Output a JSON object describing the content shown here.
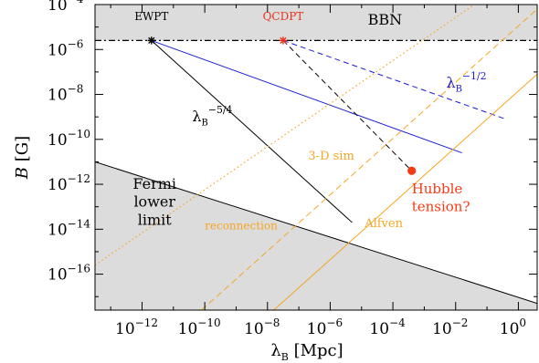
{
  "chart_data": {
    "type": "line",
    "x_scale": "log10",
    "y_scale": "log10",
    "xlim": [
      -13.5,
      0.6
    ],
    "ylim": [
      -17.6,
      -4.0
    ],
    "xlabel_main": "λ",
    "xlabel_sub": "B",
    "xlabel_rest": " [Mpc]",
    "ylabel_main": "B",
    "ylabel_rest": " [G]",
    "x_ticks": [
      {
        "exp": -12,
        "label": "10",
        "sup": "−12"
      },
      {
        "exp": -10,
        "label": "10",
        "sup": "−10"
      },
      {
        "exp": -8,
        "label": "10",
        "sup": "−8"
      },
      {
        "exp": -6,
        "label": "10",
        "sup": "−6"
      },
      {
        "exp": -4,
        "label": "10",
        "sup": "−4"
      },
      {
        "exp": -2,
        "label": "10",
        "sup": "−2"
      },
      {
        "exp": 0,
        "label": "10",
        "sup": "0"
      }
    ],
    "y_ticks": [
      {
        "exp": -4,
        "label": "10",
        "sup": "−4"
      },
      {
        "exp": -6,
        "label": "10",
        "sup": "−6"
      },
      {
        "exp": -8,
        "label": "10",
        "sup": "−8"
      },
      {
        "exp": -10,
        "label": "10",
        "sup": "−10"
      },
      {
        "exp": -12,
        "label": "10",
        "sup": "−12"
      },
      {
        "exp": -14,
        "label": "10",
        "sup": "−14"
      },
      {
        "exp": -16,
        "label": "10",
        "sup": "−16"
      }
    ],
    "regions": [
      {
        "name": "bbn-region",
        "color": "#dcdcdc",
        "points": [
          [
            -13.5,
            -5.6
          ],
          [
            0.6,
            -5.6
          ],
          [
            0.6,
            -4.0
          ],
          [
            -13.5,
            -4.0
          ]
        ]
      },
      {
        "name": "fermi-region",
        "color": "#dcdcdc",
        "points": [
          [
            -13.5,
            -11.0
          ],
          [
            0.6,
            -17.3
          ],
          [
            0.6,
            -17.6
          ],
          [
            -13.5,
            -17.6
          ]
        ]
      }
    ],
    "lines": [
      {
        "name": "bbn-bound",
        "color": "#000000",
        "dash": "7,3,2,3",
        "width": 1.2,
        "points": [
          [
            -13.5,
            -5.6
          ],
          [
            0.6,
            -5.6
          ]
        ]
      },
      {
        "name": "fermi-bound",
        "color": "#000000",
        "dash": "",
        "width": 1,
        "points": [
          [
            -13.5,
            -11.0
          ],
          [
            0.6,
            -17.3
          ]
        ]
      },
      {
        "name": "ewpt-track",
        "color": "#000000",
        "dash": "",
        "width": 1,
        "points": [
          [
            -11.7,
            -5.6
          ],
          [
            -5.3,
            -13.7
          ]
        ]
      },
      {
        "name": "ewpt-blue-track",
        "color": "#1a1ad6",
        "dash": "",
        "width": 1,
        "points": [
          [
            -11.7,
            -5.6
          ],
          [
            -1.8,
            -10.6
          ]
        ]
      },
      {
        "name": "qcdpt-track",
        "color": "#000000",
        "dash": "6,4",
        "width": 1,
        "points": [
          [
            -7.5,
            -5.6
          ],
          [
            -3.4,
            -11.4
          ]
        ]
      },
      {
        "name": "qcdpt-blue-track",
        "color": "#1a1ad6",
        "dash": "6,4",
        "width": 1,
        "points": [
          [
            -7.5,
            -5.6
          ],
          [
            -0.4,
            -9.1
          ]
        ]
      },
      {
        "name": "orange-solid",
        "color": "#f5a623",
        "dash": "",
        "width": 1,
        "points": [
          [
            -7.8,
            -17.6
          ],
          [
            0.6,
            -7.1
          ]
        ]
      },
      {
        "name": "orange-dashed",
        "color": "#f5a623",
        "dash": "7,4",
        "width": 1,
        "points": [
          [
            -10.1,
            -17.6
          ],
          [
            0.6,
            -4.2
          ]
        ]
      },
      {
        "name": "orange-dotted",
        "color": "#f5a623",
        "dash": "1.5,3",
        "width": 1.2,
        "points": [
          [
            -13.5,
            -15.6
          ],
          [
            -1.4,
            -4.0
          ]
        ]
      }
    ],
    "markers": [
      {
        "name": "ewpt-marker",
        "symbol": "star",
        "color": "#000000",
        "x": -11.7,
        "y": -5.6
      },
      {
        "name": "qcdpt-marker",
        "symbol": "star",
        "color": "#e8331c",
        "x": -7.5,
        "y": -5.6
      },
      {
        "name": "hubble-marker",
        "symbol": "dot",
        "color": "#f53b14",
        "x": -3.4,
        "y": -11.4
      }
    ],
    "annotations": [
      {
        "name": "ewpt-label",
        "text": "EWPT",
        "sup": "",
        "sub": "",
        "x": -11.7,
        "y": -4.7,
        "size": 12,
        "anchor": "middle",
        "color": "#000000",
        "family": "mono"
      },
      {
        "name": "qcdpt-label",
        "text": "QCDPT",
        "sup": "",
        "sub": "",
        "x": -7.5,
        "y": -4.7,
        "size": 12,
        "anchor": "middle",
        "color": "#e8331c",
        "family": "mono"
      },
      {
        "name": "bbn-label",
        "text": "BBN",
        "sup": "",
        "sub": "",
        "x": -4.8,
        "y": -4.9,
        "size": 16,
        "anchor": "start",
        "color": "#000000",
        "family": "serif"
      },
      {
        "name": "blue-slope-label",
        "text": "λ",
        "sup": "−1/2",
        "sub": "B",
        "x": -2.3,
        "y": -7.7,
        "size": 16,
        "anchor": "start",
        "color": "#1a1ad6",
        "family": "serif"
      },
      {
        "name": "black-slope-label",
        "text": "λ",
        "sup": "−5/4",
        "sub": "B",
        "x": -10.4,
        "y": -9.2,
        "size": 16,
        "anchor": "start",
        "color": "#000000",
        "family": "serif"
      },
      {
        "name": "sim-label",
        "text": "3-D sim",
        "sup": "",
        "sub": "",
        "x": -6.7,
        "y": -10.9,
        "size": 13,
        "anchor": "start",
        "color": "#f5a623",
        "family": "mono"
      },
      {
        "name": "fermi-label-1",
        "text": "Fermi",
        "sup": "",
        "sub": "",
        "x": -11.6,
        "y": -12.2,
        "size": 16,
        "anchor": "middle",
        "color": "#000000",
        "family": "serif"
      },
      {
        "name": "fermi-label-2",
        "text": "lower",
        "sup": "",
        "sub": "",
        "x": -11.6,
        "y": -13.0,
        "size": 16,
        "anchor": "middle",
        "color": "#000000",
        "family": "serif"
      },
      {
        "name": "fermi-label-3",
        "text": "limit",
        "sup": "",
        "sub": "",
        "x": -11.6,
        "y": -13.8,
        "size": 16,
        "anchor": "middle",
        "color": "#000000",
        "family": "serif"
      },
      {
        "name": "reconnection-label",
        "text": "reconnection",
        "sup": "",
        "sub": "",
        "x": -10.0,
        "y": -14.0,
        "size": 12,
        "anchor": "start",
        "color": "#f5a623",
        "family": "sans"
      },
      {
        "name": "alfven-label",
        "text": "Alfven",
        "sup": "",
        "sub": "",
        "x": -4.9,
        "y": -13.9,
        "size": 13,
        "anchor": "start",
        "color": "#f5a623",
        "family": "sans"
      },
      {
        "name": "hubble-label-1",
        "text": "Hubble",
        "sup": "",
        "sub": "",
        "x": -3.4,
        "y": -12.4,
        "size": 15,
        "anchor": "start",
        "color": "#f53b14",
        "family": "serif"
      },
      {
        "name": "hubble-label-2",
        "text": "tension?",
        "sup": "",
        "sub": "",
        "x": -3.4,
        "y": -13.2,
        "size": 15,
        "anchor": "start",
        "color": "#f53b14",
        "family": "serif"
      }
    ]
  }
}
